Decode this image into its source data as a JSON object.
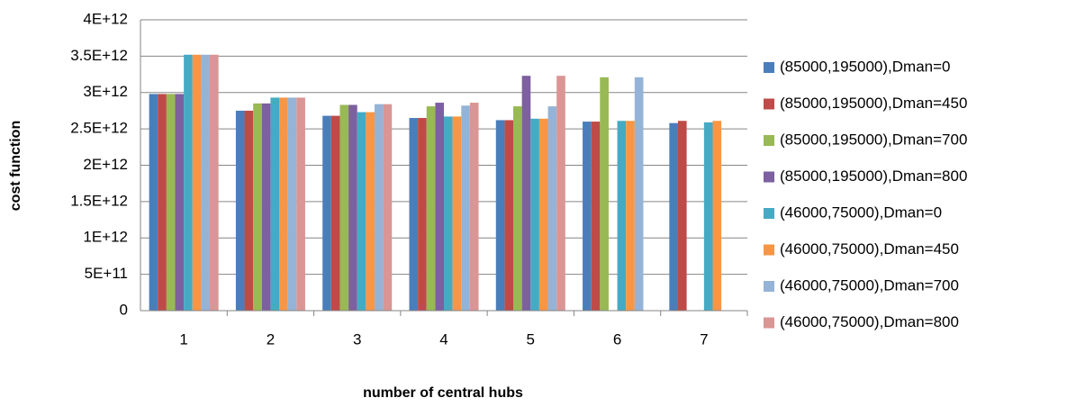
{
  "chart_data": {
    "type": "bar",
    "y_label": "cost function",
    "x_label": "number of central hubs",
    "categories": [
      "1",
      "2",
      "3",
      "4",
      "5",
      "6",
      "7"
    ],
    "series": [
      {
        "name": "(85000,195000),Dman=0",
        "color": "#4a7ebb",
        "values": [
          2980000000000,
          2750000000000,
          2680000000000,
          2650000000000,
          2620000000000,
          2600000000000,
          2580000000000
        ]
      },
      {
        "name": "(85000,195000),Dman=450",
        "color": "#be4b48",
        "values": [
          2980000000000,
          2750000000000,
          2680000000000,
          2650000000000,
          2620000000000,
          2600000000000,
          2610000000000
        ]
      },
      {
        "name": "(85000,195000),Dman=700",
        "color": "#98b954",
        "values": [
          2980000000000,
          2850000000000,
          2830000000000,
          2810000000000,
          2810000000000,
          3210000000000,
          null
        ]
      },
      {
        "name": "(85000,195000),Dman=800",
        "color": "#7d60a0",
        "values": [
          2980000000000,
          2850000000000,
          2830000000000,
          2860000000000,
          3230000000000,
          null,
          null
        ]
      },
      {
        "name": "(46000,75000),Dman=0",
        "color": "#46aac5",
        "values": [
          3520000000000,
          2930000000000,
          2730000000000,
          2670000000000,
          2640000000000,
          2610000000000,
          2590000000000
        ]
      },
      {
        "name": "(46000,75000),Dman=450",
        "color": "#f79646",
        "values": [
          3520000000000,
          2930000000000,
          2730000000000,
          2670000000000,
          2640000000000,
          2610000000000,
          2610000000000
        ]
      },
      {
        "name": "(46000,75000),Dman=700",
        "color": "#95b3d7",
        "values": [
          3520000000000,
          2930000000000,
          2840000000000,
          2820000000000,
          2810000000000,
          3210000000000,
          null
        ]
      },
      {
        "name": "(46000,75000),Dman=800",
        "color": "#d99694",
        "values": [
          3520000000000,
          2930000000000,
          2840000000000,
          2860000000000,
          3230000000000,
          null,
          null
        ]
      }
    ],
    "ylim": [
      0,
      4000000000000
    ],
    "yticks": [
      0,
      {
        "value": 500000000000,
        "label": "5E+11"
      },
      {
        "value": 1000000000000,
        "label": "1E+12"
      },
      {
        "value": 1500000000000,
        "label": "1.5E+12"
      },
      {
        "value": 2000000000000,
        "label": "2E+12"
      },
      {
        "value": 2500000000000,
        "label": "2.5E+12"
      },
      {
        "value": 3000000000000,
        "label": "3E+12"
      },
      {
        "value": 3500000000000,
        "label": "3.5E+12"
      },
      {
        "value": 4000000000000,
        "label": "4E+12"
      }
    ],
    "grid": true,
    "legend": "right"
  }
}
